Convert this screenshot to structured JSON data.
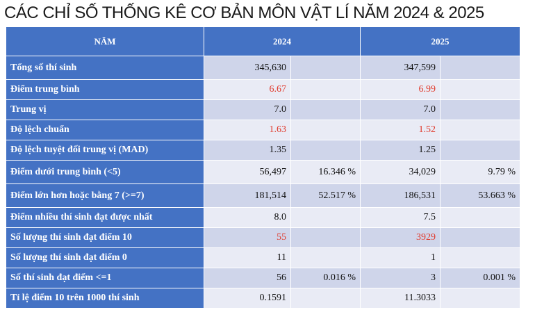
{
  "title": "CÁC CHỈ SỐ THỐNG KÊ CƠ BẢN MÔN VẬT LÍ NĂM 2024 & 2025",
  "header": {
    "col0": "NĂM",
    "col2024": "2024",
    "col2025": "2025"
  },
  "highlight_color": "#e03a2c",
  "header_color": "#4472c4",
  "rows": [
    {
      "label": "Tổng số thí sinh",
      "v2024": "345,630",
      "p2024": "",
      "v2025": "347,599",
      "p2025": ""
    },
    {
      "label": "Điểm trung bình",
      "v2024": "6.67",
      "p2024": "",
      "v2025": "6.99",
      "p2025": "",
      "highlight": true
    },
    {
      "label": "Trung vị",
      "v2024": "7.0",
      "p2024": "",
      "v2025": "7.0",
      "p2025": ""
    },
    {
      "label": "Độ lệch chuẩn",
      "v2024": "1.63",
      "p2024": "",
      "v2025": "1.52",
      "p2025": "",
      "highlight": true
    },
    {
      "label": "Độ lệch tuyệt đối trung vị (MAD)",
      "v2024": "1.35",
      "p2024": "",
      "v2025": "1.25",
      "p2025": ""
    },
    {
      "label": "Điểm dưới trung bình (<5)",
      "v2024": "56,497",
      "p2024": "16.346 %",
      "v2025": "34,029",
      "p2025": "9.79 %"
    },
    {
      "label": "Điểm lớn hơn hoặc bằng 7 (>=7)",
      "v2024": "181,514",
      "p2024": "52.517 %",
      "v2025": "186,531",
      "p2025": "53.663 %"
    },
    {
      "label": "Điểm nhiều thí sinh đạt được nhất",
      "v2024": "8.0",
      "p2024": "",
      "v2025": "7.5",
      "p2025": ""
    },
    {
      "label": "Số lượng thí sinh đạt điểm 10",
      "v2024": "55",
      "p2024": "",
      "v2025": "3929",
      "p2025": "",
      "highlight": true
    },
    {
      "label": "Số lượng thí sinh đạt điểm 0",
      "v2024": "11",
      "p2024": "",
      "v2025": "1",
      "p2025": ""
    },
    {
      "label": "Số thí sinh đạt điểm <=1",
      "v2024": "56",
      "p2024": "0.016 %",
      "v2025": "3",
      "p2025": "0.001 %"
    },
    {
      "label": "Tỉ lệ điểm 10 trên 1000 thí sinh",
      "v2024": "0.1591",
      "p2024": "",
      "v2025": "11.3033",
      "p2025": ""
    }
  ]
}
